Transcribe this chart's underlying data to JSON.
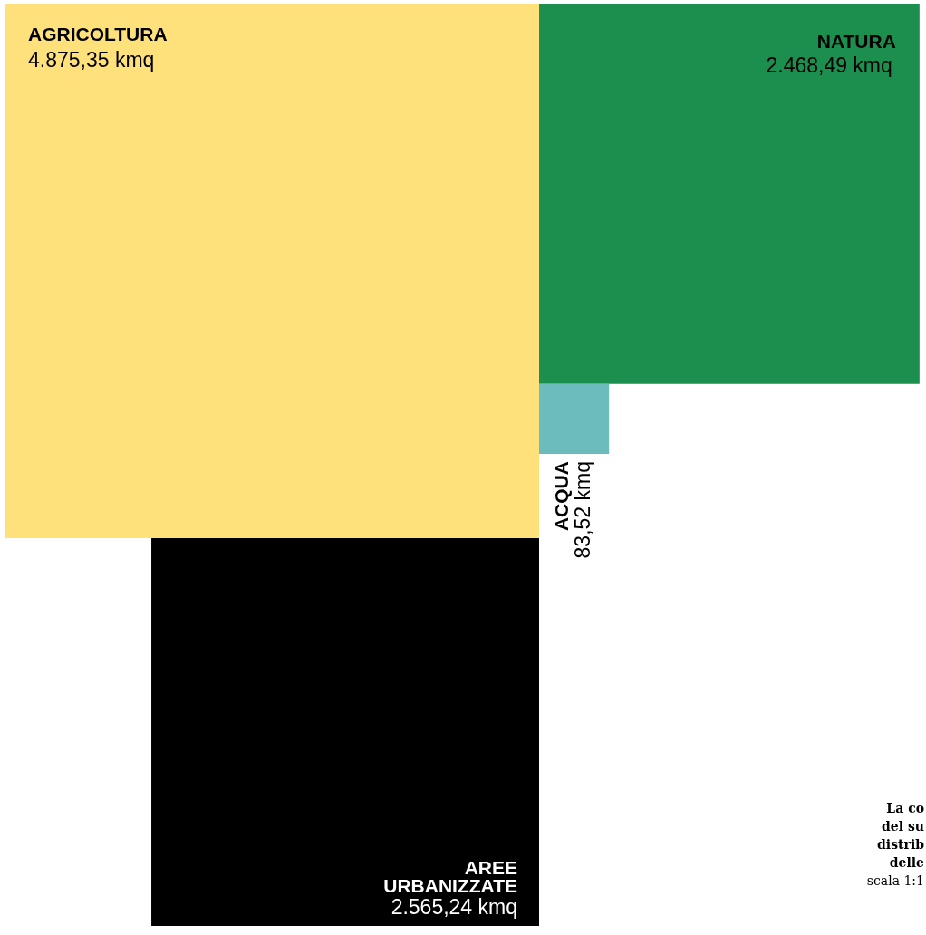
{
  "chart_data": {
    "type": "other",
    "categories": [
      "AGRICOLTURA",
      "NATURA",
      "ACQUA",
      "AREE URBANIZZATE"
    ],
    "values": [
      4875.35,
      2468.49,
      83.52,
      2565.24
    ],
    "colors": [
      "#ffe17c",
      "#1c8f4e",
      "#6dbcbd",
      "#000000"
    ],
    "value_labels": [
      "4.875,35 kmq",
      "2.468,49 kmq",
      "83,52 kmq",
      "2.565,24 kmq"
    ],
    "annotations": [
      "La co",
      "del su",
      "distrib",
      "delle",
      "scala 1:1"
    ]
  }
}
